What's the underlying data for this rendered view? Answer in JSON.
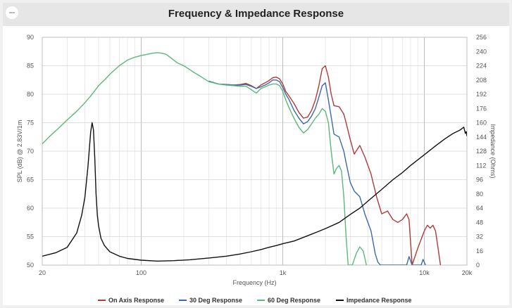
{
  "header": {
    "title": "Frequency & Impedance Response"
  },
  "chart_data": {
    "type": "line",
    "title": "Frequency & Impedance Response",
    "xlabel": "Frequency (Hz)",
    "ylabel": "SPL (dB) @ 2.83V/1m",
    "y2label": "Impedance (Ohms)",
    "xscale": "log",
    "xlim": [
      20,
      20000
    ],
    "ylim": [
      50,
      90
    ],
    "y2lim": [
      0,
      256
    ],
    "x_ticks": [
      {
        "v": 20,
        "label": "20"
      },
      {
        "v": 100,
        "label": "100"
      },
      {
        "v": 1000,
        "label": "1k"
      },
      {
        "v": 10000,
        "label": "10k"
      },
      {
        "v": 20000,
        "label": "20k"
      }
    ],
    "y_ticks": [
      50,
      55,
      60,
      65,
      70,
      75,
      80,
      85,
      90
    ],
    "y2_ticks": [
      0,
      16,
      32,
      48,
      64,
      80,
      96,
      112,
      128,
      144,
      160,
      176,
      192,
      208,
      224,
      240,
      256
    ],
    "grid": true,
    "legend_position": "bottom",
    "series": [
      {
        "name": "On Axis Response",
        "color": "#b03a3a",
        "axis": "left",
        "x": [
          300,
          350,
          400,
          450,
          500,
          550,
          600,
          650,
          700,
          750,
          800,
          850,
          900,
          950,
          1000,
          1050,
          1100,
          1200,
          1300,
          1400,
          1500,
          1600,
          1700,
          1800,
          1900,
          2000,
          2100,
          2200,
          2300,
          2500,
          2700,
          2800,
          3000,
          3200,
          3500,
          3800,
          4200,
          4600,
          5000,
          5500,
          6000,
          6500,
          7000,
          7500,
          7800,
          8200,
          9000,
          10000,
          10500,
          11000,
          11500,
          12000,
          12500,
          13000
        ],
        "y": [
          82.3,
          81.8,
          81.7,
          81.6,
          81.7,
          81.9,
          81.5,
          81.0,
          81.6,
          82.0,
          82.4,
          82.9,
          83.0,
          82.7,
          81.8,
          80.5,
          79.8,
          78.4,
          76.8,
          75.8,
          76.0,
          77.2,
          79.0,
          81.5,
          84.5,
          85.0,
          83.0,
          80.0,
          78.0,
          77.8,
          76.5,
          75.0,
          72.0,
          69.5,
          71.0,
          69.0,
          66.0,
          62.0,
          59.0,
          59.5,
          58.0,
          57.5,
          58.0,
          59.0,
          58.0,
          50.0,
          53.0,
          56.0,
          57.0,
          56.5,
          57.0,
          56.0,
          53.0,
          50.0
        ]
      },
      {
        "name": "30 Deg Response",
        "color": "#3c6aa8",
        "axis": "left",
        "x": [
          300,
          350,
          400,
          450,
          500,
          550,
          600,
          650,
          700,
          750,
          800,
          850,
          900,
          950,
          1000,
          1050,
          1100,
          1200,
          1300,
          1400,
          1500,
          1600,
          1700,
          1800,
          1900,
          2000,
          2100,
          2200,
          2300,
          2500,
          2700,
          2800,
          3000,
          3200,
          3500,
          3800,
          4200,
          4500,
          4700,
          4900,
          7500,
          7800,
          8200,
          9500,
          9800,
          10200
        ],
        "y": [
          82.3,
          81.8,
          81.7,
          81.6,
          81.6,
          81.7,
          81.4,
          81.0,
          81.3,
          81.6,
          82.0,
          82.5,
          82.5,
          82.2,
          81.2,
          80.0,
          79.2,
          77.2,
          75.8,
          74.8,
          75.2,
          76.2,
          77.5,
          79.5,
          81.5,
          82.0,
          79.0,
          76.0,
          73.0,
          72.5,
          70.0,
          68.0,
          64.5,
          63.0,
          62.0,
          59.0,
          56.0,
          52.0,
          50.5,
          50.0,
          50.0,
          51.5,
          50.0,
          50.0,
          51.0,
          50.0
        ]
      },
      {
        "name": "60 Deg Response",
        "color": "#5cb87a",
        "axis": "left",
        "x": [
          20,
          23,
          26,
          30,
          35,
          40,
          45,
          50,
          55,
          60,
          70,
          80,
          90,
          100,
          110,
          120,
          130,
          140,
          150,
          160,
          180,
          200,
          230,
          260,
          300,
          350,
          400,
          450,
          500,
          550,
          600,
          650,
          700,
          750,
          800,
          850,
          900,
          950,
          1000,
          1050,
          1100,
          1200,
          1300,
          1400,
          1500,
          1600,
          1700,
          1800,
          1900,
          2000,
          2100,
          2200,
          2300,
          2400,
          2500,
          2600,
          2700,
          2800,
          2900,
          3000,
          3100,
          3300,
          3500,
          3700,
          3900
        ],
        "y": [
          71.3,
          72.8,
          74.0,
          75.5,
          77.0,
          78.5,
          80.0,
          81.5,
          82.5,
          83.5,
          85.0,
          86.0,
          86.5,
          86.8,
          87.0,
          87.2,
          87.3,
          87.2,
          87.0,
          86.5,
          85.5,
          85.0,
          84.0,
          83.2,
          82.2,
          81.8,
          81.6,
          81.5,
          81.4,
          81.4,
          80.8,
          80.2,
          81.0,
          81.3,
          81.6,
          81.8,
          81.8,
          81.5,
          80.5,
          79.0,
          77.8,
          75.8,
          74.2,
          73.2,
          73.8,
          74.8,
          75.8,
          76.5,
          77.5,
          77.0,
          75.0,
          70.0,
          66.0,
          67.0,
          67.5,
          66.5,
          62.0,
          55.0,
          50.0,
          50.0,
          50.0,
          52.0,
          53.2,
          52.5,
          50.0
        ]
      },
      {
        "name": "Impedance Response",
        "color": "#111111",
        "axis": "right",
        "x": [
          20,
          25,
          30,
          35,
          38,
          40,
          42,
          44,
          45,
          46,
          47,
          48,
          49,
          50,
          52,
          55,
          60,
          70,
          80,
          100,
          130,
          170,
          220,
          300,
          400,
          500,
          600,
          700,
          800,
          900,
          1000,
          1200,
          1500,
          1800,
          2000,
          2500,
          3000,
          3500,
          4000,
          5000,
          6000,
          7000,
          8000,
          10000,
          12000,
          14000,
          16000,
          18000,
          19000,
          19500,
          19800,
          20000
        ],
        "y": [
          10,
          14,
          20,
          36,
          56,
          76,
          110,
          150,
          160,
          152,
          120,
          80,
          56,
          44,
          30,
          22,
          15,
          10,
          7.5,
          5.5,
          4.5,
          5,
          6,
          8,
          10,
          12.5,
          15,
          17.5,
          20,
          22,
          24,
          27,
          33,
          38,
          41,
          48,
          57,
          64,
          72,
          85,
          96,
          104,
          112,
          124,
          134,
          142,
          148,
          152,
          155,
          148,
          150,
          145
        ]
      }
    ]
  }
}
